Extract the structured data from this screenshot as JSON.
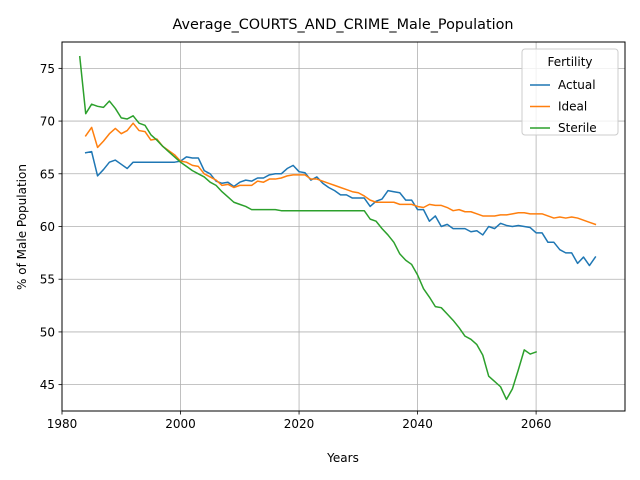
{
  "chart_data": {
    "type": "line",
    "title": "Average_COURTS_AND_CRIME_Male_Population",
    "xlabel": "Years",
    "ylabel": "% of Male Population",
    "xlim": [
      1980,
      2075
    ],
    "ylim": [
      42.5,
      77.5
    ],
    "xticks": [
      1980,
      2000,
      2020,
      2040,
      2060
    ],
    "yticks": [
      45,
      50,
      55,
      60,
      65,
      70,
      75
    ],
    "grid": true,
    "legend": {
      "title": "Fertility",
      "placement": "top-right"
    },
    "series": [
      {
        "name": "Actual",
        "color": "#1f77b4",
        "x": [
          1984,
          1985,
          1986,
          1987,
          1988,
          1989,
          1990,
          1991,
          1992,
          1993,
          1994,
          1995,
          1996,
          1997,
          1998,
          1999,
          2000,
          2001,
          2002,
          2003,
          2004,
          2005,
          2006,
          2007,
          2008,
          2009,
          2010,
          2011,
          2012,
          2013,
          2014,
          2015,
          2016,
          2017,
          2018,
          2019,
          2020,
          2021,
          2022,
          2023,
          2024,
          2025,
          2026,
          2027,
          2028,
          2029,
          2030,
          2031,
          2032,
          2033,
          2034,
          2035,
          2036,
          2037,
          2038,
          2039,
          2040,
          2041,
          2042,
          2043,
          2044,
          2045,
          2046,
          2047,
          2048,
          2049,
          2050,
          2051,
          2052,
          2053,
          2054,
          2055,
          2056,
          2057,
          2058,
          2059,
          2060,
          2061,
          2062,
          2063,
          2064,
          2065,
          2066,
          2067,
          2068,
          2069,
          2070
        ],
        "y": [
          67.0,
          67.1,
          64.8,
          65.4,
          66.1,
          66.3,
          65.9,
          65.5,
          66.1,
          66.1,
          66.1,
          66.1,
          66.1,
          66.1,
          66.1,
          66.1,
          66.2,
          66.6,
          66.5,
          66.5,
          65.3,
          65.0,
          64.3,
          64.1,
          64.2,
          63.8,
          64.2,
          64.4,
          64.3,
          64.6,
          64.6,
          64.9,
          65.0,
          65.0,
          65.5,
          65.8,
          65.2,
          65.1,
          64.4,
          64.7,
          64.1,
          63.7,
          63.4,
          63.0,
          63.0,
          62.7,
          62.7,
          62.7,
          61.9,
          62.4,
          62.6,
          63.4,
          63.3,
          63.2,
          62.5,
          62.5,
          61.6,
          61.6,
          60.5,
          61.0,
          60.0,
          60.2,
          59.8,
          59.8,
          59.8,
          59.5,
          59.6,
          59.2,
          60.0,
          59.8,
          60.3,
          60.1,
          60.0,
          60.1,
          60.0,
          59.9,
          59.4,
          59.4,
          58.5,
          58.5,
          57.8,
          57.5,
          57.5,
          56.5,
          57.1,
          56.3,
          57.1
        ]
      },
      {
        "name": "Ideal",
        "color": "#ff7f0e",
        "x": [
          1984,
          1985,
          1986,
          1987,
          1988,
          1989,
          1990,
          1991,
          1992,
          1993,
          1994,
          1995,
          1996,
          1997,
          1998,
          1999,
          2000,
          2001,
          2002,
          2003,
          2004,
          2005,
          2006,
          2007,
          2008,
          2009,
          2010,
          2011,
          2012,
          2013,
          2014,
          2015,
          2016,
          2017,
          2018,
          2019,
          2020,
          2021,
          2022,
          2023,
          2024,
          2025,
          2026,
          2027,
          2028,
          2029,
          2030,
          2031,
          2032,
          2033,
          2034,
          2035,
          2036,
          2037,
          2038,
          2039,
          2040,
          2041,
          2042,
          2043,
          2044,
          2045,
          2046,
          2047,
          2048,
          2049,
          2050,
          2051,
          2052,
          2053,
          2054,
          2055,
          2056,
          2057,
          2058,
          2059,
          2060,
          2061,
          2062,
          2063,
          2064,
          2065,
          2066,
          2067,
          2068,
          2069,
          2070
        ],
        "y": [
          68.6,
          69.4,
          67.5,
          68.1,
          68.8,
          69.3,
          68.8,
          69.1,
          69.8,
          69.1,
          69.0,
          68.2,
          68.3,
          67.6,
          67.2,
          66.8,
          66.2,
          66.1,
          65.8,
          65.7,
          65.0,
          64.7,
          64.4,
          63.9,
          64.0,
          63.7,
          63.9,
          63.9,
          63.9,
          64.3,
          64.2,
          64.5,
          64.5,
          64.6,
          64.8,
          64.9,
          64.9,
          64.9,
          64.5,
          64.5,
          64.3,
          64.1,
          63.9,
          63.7,
          63.5,
          63.3,
          63.2,
          62.9,
          62.5,
          62.3,
          62.3,
          62.3,
          62.3,
          62.1,
          62.1,
          62.1,
          61.9,
          61.8,
          62.1,
          62.0,
          62.0,
          61.8,
          61.5,
          61.6,
          61.4,
          61.4,
          61.2,
          61.0,
          61.0,
          61.0,
          61.1,
          61.1,
          61.2,
          61.3,
          61.3,
          61.2,
          61.2,
          61.2,
          61.0,
          60.8,
          60.9,
          60.8,
          60.9,
          60.8,
          60.6,
          60.4,
          60.2
        ]
      },
      {
        "name": "Sterile",
        "color": "#2ca02c",
        "x": [
          1983,
          1984,
          1985,
          1986,
          1987,
          1988,
          1989,
          1990,
          1991,
          1992,
          1993,
          1994,
          1995,
          1996,
          1997,
          1998,
          1999,
          2000,
          2001,
          2002,
          2003,
          2004,
          2005,
          2006,
          2007,
          2008,
          2009,
          2010,
          2011,
          2012,
          2013,
          2014,
          2015,
          2016,
          2017,
          2018,
          2019,
          2020,
          2021,
          2022,
          2023,
          2024,
          2025,
          2026,
          2027,
          2028,
          2029,
          2030,
          2031,
          2032,
          2033,
          2034,
          2035,
          2036,
          2037,
          2038,
          2039,
          2040,
          2041,
          2042,
          2043,
          2044,
          2045,
          2046,
          2047,
          2048,
          2049,
          2050,
          2051,
          2052,
          2053,
          2054,
          2055,
          2056,
          2057,
          2058,
          2059,
          2060
        ],
        "y": [
          76.1,
          70.7,
          71.6,
          71.4,
          71.3,
          71.9,
          71.2,
          70.3,
          70.2,
          70.5,
          69.8,
          69.6,
          68.7,
          68.2,
          67.6,
          67.1,
          66.6,
          66.1,
          65.7,
          65.3,
          65.0,
          64.7,
          64.2,
          63.9,
          63.3,
          62.8,
          62.3,
          62.1,
          61.9,
          61.6,
          61.6,
          61.6,
          61.6,
          61.6,
          61.5,
          61.5,
          61.5,
          61.5,
          61.5,
          61.5,
          61.5,
          61.5,
          61.5,
          61.5,
          61.5,
          61.5,
          61.5,
          61.5,
          61.5,
          60.7,
          60.5,
          59.8,
          59.2,
          58.5,
          57.4,
          56.8,
          56.4,
          55.4,
          54.1,
          53.3,
          52.4,
          52.3,
          51.7,
          51.1,
          50.4,
          49.6,
          49.3,
          48.8,
          47.8,
          45.8,
          45.3,
          44.8,
          43.6,
          44.6,
          46.4,
          48.3,
          47.9,
          48.1
        ]
      }
    ]
  }
}
